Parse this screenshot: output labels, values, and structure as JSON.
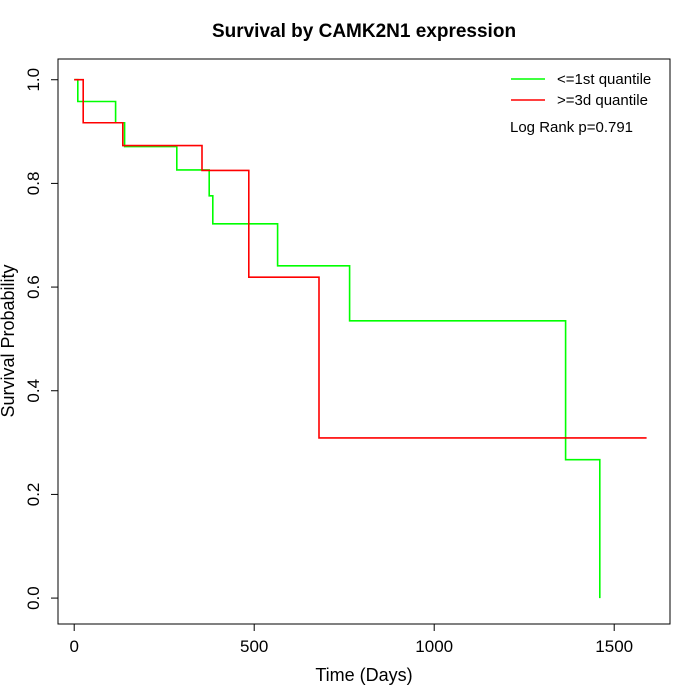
{
  "chart_data": {
    "type": "line",
    "title": "Survival by CAMK2N1 expression",
    "xlabel": "Time (Days)",
    "ylabel": "Survival Probability",
    "xlim": [
      -45,
      1655
    ],
    "ylim": [
      -0.05,
      1.04
    ],
    "x_ticks": [
      0,
      500,
      1000,
      1500
    ],
    "y_ticks": [
      0.0,
      0.2,
      0.4,
      0.6,
      0.8,
      1.0
    ],
    "x_tick_labels": [
      "0",
      "500",
      "1000",
      "1500"
    ],
    "y_tick_labels": [
      "0.0",
      "0.2",
      "0.4",
      "0.6",
      "0.8",
      "1.0"
    ],
    "grid": false,
    "legend_position": "top-right",
    "annotation": "Log Rank p=0.791",
    "series": [
      {
        "name": "<=1st quantile",
        "color": "#00ff00",
        "x": [
          0,
          10,
          115,
          140,
          285,
          375,
          385,
          565,
          765,
          1365,
          1460
        ],
        "y": [
          1.0,
          0.958,
          0.917,
          0.871,
          0.826,
          0.776,
          0.722,
          0.641,
          0.535,
          0.267,
          0.0
        ]
      },
      {
        "name": ">=3d quantile",
        "color": "#ff0000",
        "x": [
          0,
          25,
          135,
          355,
          485,
          680,
          1590
        ],
        "y": [
          1.0,
          0.917,
          0.873,
          0.825,
          0.619,
          0.309,
          0.309
        ]
      }
    ]
  }
}
